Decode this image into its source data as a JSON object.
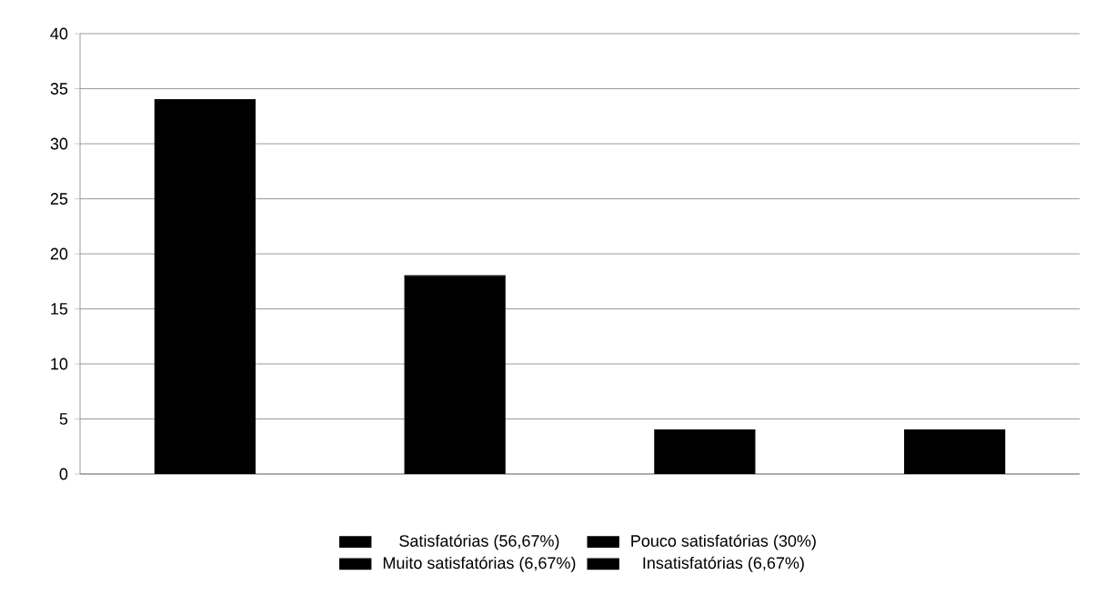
{
  "chart_data": {
    "type": "bar",
    "categories": [
      null,
      null,
      null,
      null
    ],
    "series": [
      {
        "name": "Satisfatórias (56,67%)",
        "color": "#000000",
        "values": [
          34,
          null,
          null,
          null
        ]
      },
      {
        "name": "Pouco satisfatórias (30%)",
        "color": "#000000",
        "values": [
          null,
          18,
          null,
          null
        ]
      },
      {
        "name": "Muito satisfatórias (6,67%)",
        "color": "#000000",
        "values": [
          null,
          null,
          4,
          null
        ]
      },
      {
        "name": "Insatisfatórias (6,67%)",
        "color": "#000000",
        "values": [
          null,
          null,
          null,
          4
        ]
      }
    ],
    "ylim": [
      0,
      40
    ],
    "yticks": [
      0,
      5,
      10,
      15,
      20,
      25,
      30,
      35,
      40
    ],
    "grid": "y",
    "legend": "bottom"
  }
}
